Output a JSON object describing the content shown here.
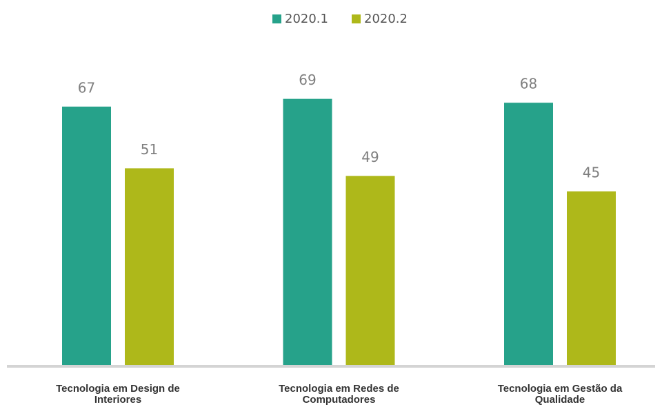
{
  "chart_data": {
    "type": "bar",
    "categories": [
      "Tecnologia em Design de Interiores",
      "Tecnologia em Redes de Computadores",
      "Tecnologia em Gestão da Qualidade"
    ],
    "series": [
      {
        "name": "2020.1",
        "color": "#26a28a",
        "values": [
          67,
          69,
          68
        ]
      },
      {
        "name": "2020.2",
        "color": "#aeb81a",
        "values": [
          51,
          49,
          45
        ]
      }
    ],
    "legend": "top"
  }
}
